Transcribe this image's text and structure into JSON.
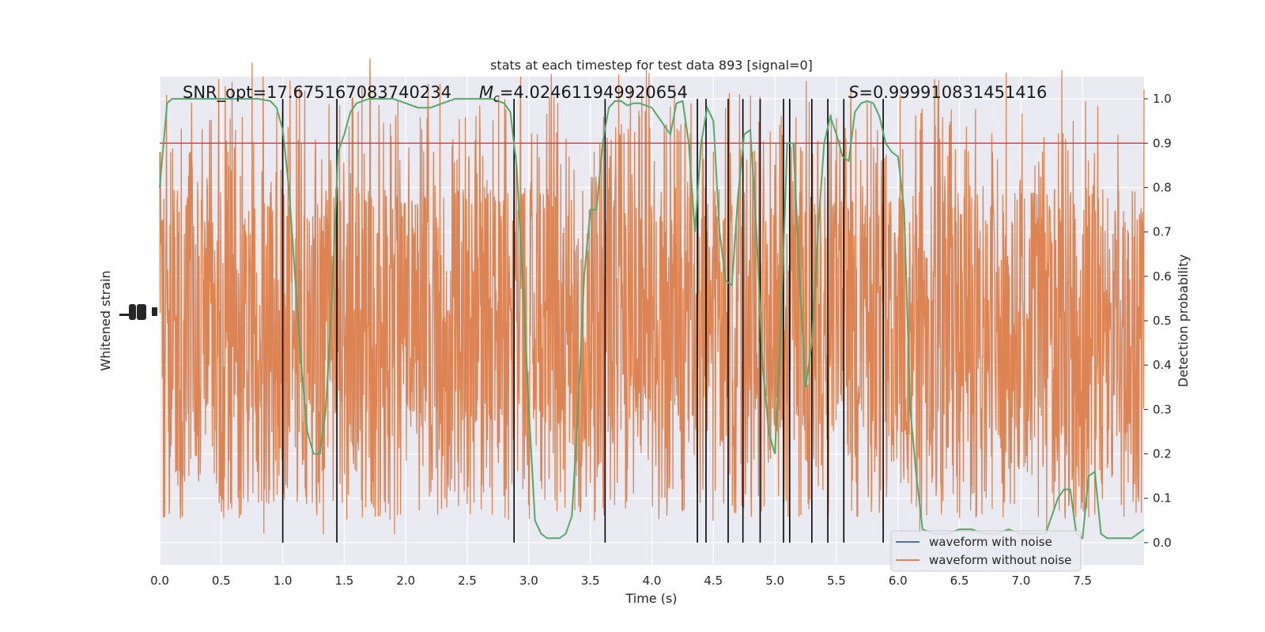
{
  "chart_data": {
    "type": "line",
    "title": "stats at each timestep for test data 893 [signal=0]",
    "xlabel": "Time (s)",
    "ylabel_left": "Whitened strain",
    "ylabel_right": "Detection probability",
    "xlim": [
      0,
      8
    ],
    "ylim_right": [
      -0.05,
      1.05
    ],
    "x_ticks": [
      "0.0",
      "0.5",
      "1.0",
      "1.5",
      "2.0",
      "2.5",
      "3.0",
      "3.5",
      "4.0",
      "4.5",
      "5.0",
      "5.5",
      "6.0",
      "6.5",
      "7.0",
      "7.5"
    ],
    "y_ticks_right": [
      "0.0",
      "0.1",
      "0.2",
      "0.3",
      "0.4",
      "0.5",
      "0.6",
      "0.7",
      "0.8",
      "0.9",
      "1.0"
    ],
    "grid": true,
    "annotations": {
      "snr": "SNR_opt=17.675167083740234",
      "mc_symbol": "M",
      "mc_sub": "c",
      "mc_value": "=4.024611949920654",
      "s_symbol": "S",
      "s_value": "=0.999910831451416"
    },
    "threshold": {
      "value": 0.9,
      "color": "#c44e52"
    },
    "detection_series": {
      "color": "#55a868",
      "x": [
        0.0,
        0.06,
        0.1,
        0.15,
        0.2,
        0.3,
        0.4,
        0.5,
        0.6,
        0.7,
        0.8,
        0.9,
        0.95,
        1.0,
        1.05,
        1.1,
        1.15,
        1.2,
        1.25,
        1.3,
        1.35,
        1.4,
        1.45,
        1.5,
        1.55,
        1.6,
        1.7,
        1.8,
        1.9,
        2.0,
        2.1,
        2.2,
        2.3,
        2.4,
        2.5,
        2.6,
        2.7,
        2.8,
        2.85,
        2.9,
        2.95,
        3.0,
        3.05,
        3.1,
        3.15,
        3.2,
        3.25,
        3.3,
        3.35,
        3.4,
        3.45,
        3.5,
        3.55,
        3.6,
        3.65,
        3.7,
        3.75,
        3.8,
        3.85,
        3.9,
        4.0,
        4.05,
        4.1,
        4.15,
        4.2,
        4.25,
        4.3,
        4.35,
        4.4,
        4.45,
        4.5,
        4.55,
        4.6,
        4.65,
        4.7,
        4.75,
        4.8,
        4.85,
        4.9,
        4.95,
        5.0,
        5.05,
        5.1,
        5.15,
        5.2,
        5.25,
        5.3,
        5.35,
        5.4,
        5.45,
        5.5,
        5.55,
        5.6,
        5.65,
        5.7,
        5.75,
        5.8,
        5.85,
        5.9,
        5.95,
        6.0,
        6.05,
        6.1,
        6.15,
        6.2,
        6.3,
        6.4,
        6.5,
        6.6,
        6.7,
        6.8,
        6.9,
        7.0,
        7.1,
        7.2,
        7.3,
        7.35,
        7.4,
        7.45,
        7.5,
        7.55,
        7.6,
        7.65,
        7.7,
        7.8,
        7.9,
        8.0
      ],
      "y": [
        0.8,
        0.99,
        1.0,
        1.0,
        1.0,
        1.0,
        1.0,
        1.0,
        1.0,
        1.0,
        1.0,
        0.995,
        0.98,
        0.93,
        0.8,
        0.6,
        0.4,
        0.25,
        0.2,
        0.2,
        0.3,
        0.55,
        0.88,
        0.92,
        0.97,
        0.99,
        1.0,
        1.0,
        1.0,
        0.99,
        0.98,
        0.98,
        0.99,
        1.0,
        1.0,
        1.0,
        1.0,
        0.99,
        0.97,
        0.85,
        0.6,
        0.3,
        0.05,
        0.02,
        0.01,
        0.01,
        0.01,
        0.02,
        0.06,
        0.3,
        0.6,
        0.75,
        0.75,
        0.9,
        0.98,
        0.995,
        0.995,
        0.985,
        0.99,
        0.99,
        0.98,
        0.96,
        0.94,
        0.92,
        0.99,
        0.995,
        0.9,
        0.7,
        0.9,
        0.98,
        0.95,
        0.7,
        0.59,
        0.58,
        0.78,
        0.92,
        0.93,
        0.7,
        0.4,
        0.25,
        0.2,
        0.5,
        0.9,
        0.9,
        0.6,
        0.35,
        0.45,
        0.7,
        0.9,
        0.96,
        0.92,
        0.87,
        0.86,
        0.97,
        0.99,
        0.995,
        0.99,
        0.96,
        0.9,
        0.88,
        0.87,
        0.75,
        0.3,
        0.15,
        0.03,
        0.02,
        0.02,
        0.03,
        0.03,
        0.02,
        0.02,
        0.03,
        0.02,
        0.02,
        0.02,
        0.1,
        0.12,
        0.12,
        0.02,
        0.01,
        0.15,
        0.16,
        0.02,
        0.01,
        0.01,
        0.01,
        0.03
      ]
    },
    "event_lines_x": [
      1.0,
      1.44,
      2.88,
      3.62,
      4.37,
      4.44,
      4.62,
      4.74,
      4.88,
      5.07,
      5.12,
      5.3,
      5.43,
      5.56,
      5.88
    ],
    "noise_series": {
      "color": "#dd8452",
      "center": 0.5,
      "envelope": [
        0.2,
        0.8
      ],
      "peak_range": [
        0.02,
        0.98
      ]
    },
    "legend": {
      "position": "lower right",
      "entries": [
        {
          "name": "waveform with noise",
          "color": "#4c72b0"
        },
        {
          "name": "waveform without noise",
          "color": "#dd8452"
        }
      ]
    },
    "colors": {
      "axes_bg": "#eaeaf2",
      "grid": "#ffffff",
      "event_lines": "#000000"
    }
  }
}
